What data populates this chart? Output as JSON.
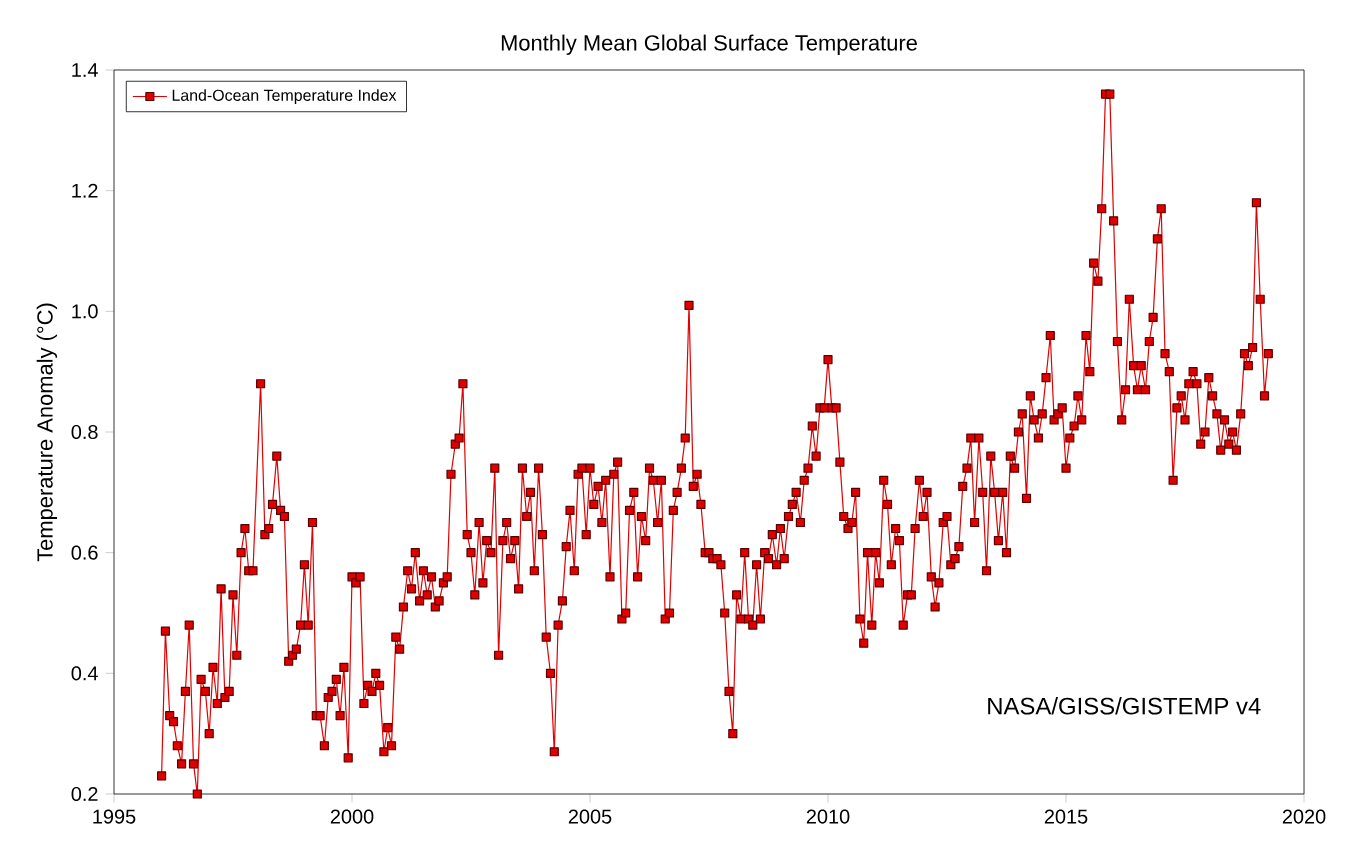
{
  "chart_data": {
    "type": "line",
    "title": "Monthly Mean Global Surface Temperature",
    "ylabel": "Temperature Anomaly (°C)",
    "xlim": [
      1995,
      2020
    ],
    "xticks": [
      1995,
      2000,
      2005,
      2010,
      2015,
      2020
    ],
    "ylim": [
      0.2,
      1.4
    ],
    "yticks": [
      {
        "value": 0.2,
        "label": "0.2"
      },
      {
        "value": 0.4,
        "label": "0.4"
      },
      {
        "value": 0.6,
        "label": "0.6"
      },
      {
        "value": 0.8,
        "label": "0.8"
      },
      {
        "value": 1.0,
        "label": "1.0"
      },
      {
        "value": 1.2,
        "label": "1.2"
      },
      {
        "value": 1.4,
        "label": "1.4"
      }
    ],
    "legend": "top left",
    "marker": "square",
    "line_style": "solid",
    "grid": false,
    "annotations": [
      "NASA/GISS/GISTEMP v4"
    ],
    "series": [
      {
        "name": "Land-Ocean Temperature Index",
        "color": "#e00000",
        "x": [
          1996.0,
          1996.08,
          1996.17,
          1996.25,
          1996.33,
          1996.42,
          1996.5,
          1996.58,
          1996.67,
          1996.75,
          1996.83,
          1996.92,
          1997.0,
          1997.08,
          1997.17,
          1997.25,
          1997.33,
          1997.42,
          1997.5,
          1997.58,
          1997.67,
          1997.75,
          1997.83,
          1997.92,
          1998.08,
          1998.17,
          1998.25,
          1998.33,
          1998.42,
          1998.5,
          1998.58,
          1998.67,
          1998.75,
          1998.83,
          1998.92,
          1999.0,
          1999.08,
          1999.17,
          1999.25,
          1999.33,
          1999.42,
          1999.5,
          1999.58,
          1999.67,
          1999.75,
          1999.83,
          1999.92,
          2000.0,
          2000.08,
          2000.17,
          2000.25,
          2000.33,
          2000.42,
          2000.5,
          2000.58,
          2000.67,
          2000.75,
          2000.83,
          2000.92,
          2001.0,
          2001.08,
          2001.17,
          2001.25,
          2001.33,
          2001.42,
          2001.5,
          2001.58,
          2001.67,
          2001.75,
          2001.83,
          2001.92,
          2002.0,
          2002.08,
          2002.17,
          2002.25,
          2002.33,
          2002.42,
          2002.5,
          2002.58,
          2002.67,
          2002.75,
          2002.83,
          2002.92,
          2003.0,
          2003.08,
          2003.17,
          2003.25,
          2003.33,
          2003.42,
          2003.5,
          2003.58,
          2003.67,
          2003.75,
          2003.83,
          2003.92,
          2004.0,
          2004.08,
          2004.17,
          2004.25,
          2004.33,
          2004.42,
          2004.5,
          2004.58,
          2004.67,
          2004.75,
          2004.83,
          2004.92,
          2005.0,
          2005.08,
          2005.17,
          2005.25,
          2005.33,
          2005.42,
          2005.5,
          2005.58,
          2005.67,
          2005.75,
          2005.83,
          2005.92,
          2006.0,
          2006.08,
          2006.17,
          2006.25,
          2006.33,
          2006.42,
          2006.5,
          2006.58,
          2006.67,
          2006.75,
          2006.83,
          2006.92,
          2007.0,
          2007.08,
          2007.17,
          2007.25,
          2007.33,
          2007.42,
          2007.5,
          2007.58,
          2007.67,
          2007.75,
          2007.83,
          2007.92,
          2008.0,
          2008.08,
          2008.17,
          2008.25,
          2008.33,
          2008.42,
          2008.5,
          2008.58,
          2008.67,
          2008.75,
          2008.83,
          2008.92,
          2009.0,
          2009.08,
          2009.17,
          2009.25,
          2009.33,
          2009.42,
          2009.5,
          2009.58,
          2009.67,
          2009.75,
          2009.83,
          2009.92,
          2010.0,
          2010.08,
          2010.17,
          2010.25,
          2010.33,
          2010.42,
          2010.5,
          2010.58,
          2010.67,
          2010.75,
          2010.83,
          2010.92,
          2011.0,
          2011.08,
          2011.17,
          2011.25,
          2011.33,
          2011.42,
          2011.5,
          2011.58,
          2011.67,
          2011.75,
          2011.83,
          2011.92,
          2012.0,
          2012.08,
          2012.17,
          2012.25,
          2012.33,
          2012.42,
          2012.5,
          2012.58,
          2012.67,
          2012.75,
          2012.83,
          2012.92,
          2013.0,
          2013.08,
          2013.17,
          2013.25,
          2013.33,
          2013.42,
          2013.5,
          2013.58,
          2013.67,
          2013.75,
          2013.83,
          2013.92,
          2014.0,
          2014.08,
          2014.17,
          2014.25,
          2014.33,
          2014.42,
          2014.5,
          2014.58,
          2014.67,
          2014.75,
          2014.83,
          2014.92,
          2015.0,
          2015.08,
          2015.17,
          2015.25,
          2015.33,
          2015.42,
          2015.5,
          2015.58,
          2015.67,
          2015.75,
          2015.83,
          2015.92,
          2016.0,
          2016.08,
          2016.17,
          2016.25,
          2016.33,
          2016.42,
          2016.5,
          2016.58,
          2016.67,
          2016.75,
          2016.83,
          2016.92,
          2017.0,
          2017.08,
          2017.17,
          2017.25,
          2017.33,
          2017.42,
          2017.5,
          2017.58,
          2017.67,
          2017.75,
          2017.83,
          2017.92,
          2018.0,
          2018.08,
          2018.17,
          2018.25,
          2018.33,
          2018.42,
          2018.5,
          2018.58,
          2018.67,
          2018.75,
          2018.83,
          2018.92,
          2019.0,
          2019.08,
          2019.17,
          2019.25
        ],
        "values": [
          0.23,
          0.47,
          0.33,
          0.32,
          0.28,
          0.25,
          0.37,
          0.48,
          0.25,
          0.2,
          0.39,
          0.37,
          0.3,
          0.41,
          0.35,
          0.54,
          0.36,
          0.37,
          0.53,
          0.43,
          0.6,
          0.64,
          0.57,
          0.57,
          0.88,
          0.63,
          0.64,
          0.68,
          0.76,
          0.67,
          0.66,
          0.42,
          0.43,
          0.44,
          0.48,
          0.58,
          0.48,
          0.65,
          0.33,
          0.33,
          0.28,
          0.36,
          0.37,
          0.39,
          0.33,
          0.41,
          0.26,
          0.56,
          0.55,
          0.56,
          0.35,
          0.38,
          0.37,
          0.4,
          0.38,
          0.27,
          0.31,
          0.28,
          0.46,
          0.44,
          0.51,
          0.57,
          0.54,
          0.6,
          0.52,
          0.57,
          0.53,
          0.56,
          0.51,
          0.52,
          0.55,
          0.56,
          0.73,
          0.78,
          0.79,
          0.88,
          0.63,
          0.6,
          0.53,
          0.65,
          0.55,
          0.62,
          0.6,
          0.74,
          0.43,
          0.62,
          0.65,
          0.59,
          0.62,
          0.54,
          0.74,
          0.66,
          0.7,
          0.57,
          0.74,
          0.63,
          0.46,
          0.4,
          0.27,
          0.48,
          0.52,
          0.61,
          0.67,
          0.57,
          0.73,
          0.74,
          0.63,
          0.74,
          0.68,
          0.71,
          0.65,
          0.72,
          0.56,
          0.73,
          0.75,
          0.49,
          0.5,
          0.67,
          0.7,
          0.56,
          0.66,
          0.62,
          0.74,
          0.72,
          0.65,
          0.72,
          0.49,
          0.5,
          0.67,
          0.7,
          0.74,
          0.79,
          1.01,
          0.71,
          0.73,
          0.68,
          0.6,
          0.6,
          0.59,
          0.59,
          0.58,
          0.5,
          0.37,
          0.3,
          0.53,
          0.49,
          0.6,
          0.49,
          0.48,
          0.58,
          0.49,
          0.6,
          0.59,
          0.63,
          0.58,
          0.64,
          0.59,
          0.66,
          0.68,
          0.7,
          0.65,
          0.72,
          0.74,
          0.81,
          0.76,
          0.84,
          0.84,
          0.92,
          0.84,
          0.84,
          0.75,
          0.66,
          0.64,
          0.65,
          0.7,
          0.49,
          0.45,
          0.6,
          0.48,
          0.6,
          0.55,
          0.72,
          0.68,
          0.58,
          0.64,
          0.62,
          0.48,
          0.53,
          0.53,
          0.64,
          0.72,
          0.66,
          0.7,
          0.56,
          0.51,
          0.55,
          0.65,
          0.66,
          0.58,
          0.59,
          0.61,
          0.71,
          0.74,
          0.79,
          0.65,
          0.79,
          0.7,
          0.57,
          0.76,
          0.7,
          0.62,
          0.7,
          0.6,
          0.76,
          0.74,
          0.8,
          0.83,
          0.69,
          0.86,
          0.82,
          0.79,
          0.83,
          0.89,
          0.96,
          0.82,
          0.83,
          0.84,
          0.74,
          0.79,
          0.81,
          0.86,
          0.82,
          0.96,
          0.9,
          1.08,
          1.05,
          1.17,
          1.36,
          1.36,
          1.15,
          0.95,
          0.82,
          0.87,
          1.02,
          0.91,
          0.87,
          0.91,
          0.87,
          0.95,
          0.99,
          1.12,
          1.17,
          0.93,
          0.9,
          0.72,
          0.84,
          0.86,
          0.82,
          0.88,
          0.9,
          0.88,
          0.78,
          0.8,
          0.89,
          0.86,
          0.83,
          0.77,
          0.82,
          0.78,
          0.8,
          0.77,
          0.83,
          0.93,
          0.91,
          0.94,
          1.18,
          1.02,
          0.86,
          0.93
        ]
      }
    ]
  }
}
